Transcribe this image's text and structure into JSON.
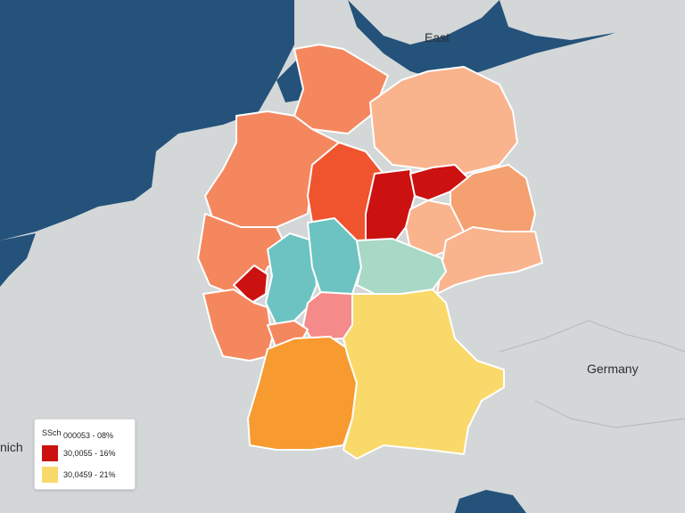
{
  "labels": {
    "east": "East",
    "germany": "Germany",
    "edge": "nich"
  },
  "legend": {
    "title": "SSch",
    "items": [
      {
        "label": "000053 - 08%",
        "color": ""
      },
      {
        "label": "30,0055 - 16%",
        "color": "#cc1111"
      },
      {
        "label": "30,0459 - 21%",
        "color": "#fad96b"
      }
    ]
  },
  "colors": {
    "sea": "#24527a",
    "land": "#d3d7d8",
    "orange_light": "#f9b48e",
    "orange_mid": "#f5875f",
    "orange_strong": "#f0542e",
    "red": "#cc1111",
    "teal": "#6cc3c2",
    "teal_light": "#a8d8c6",
    "pink": "#f58a8a",
    "orange": "#f79a30",
    "yellow": "#fad96b"
  }
}
